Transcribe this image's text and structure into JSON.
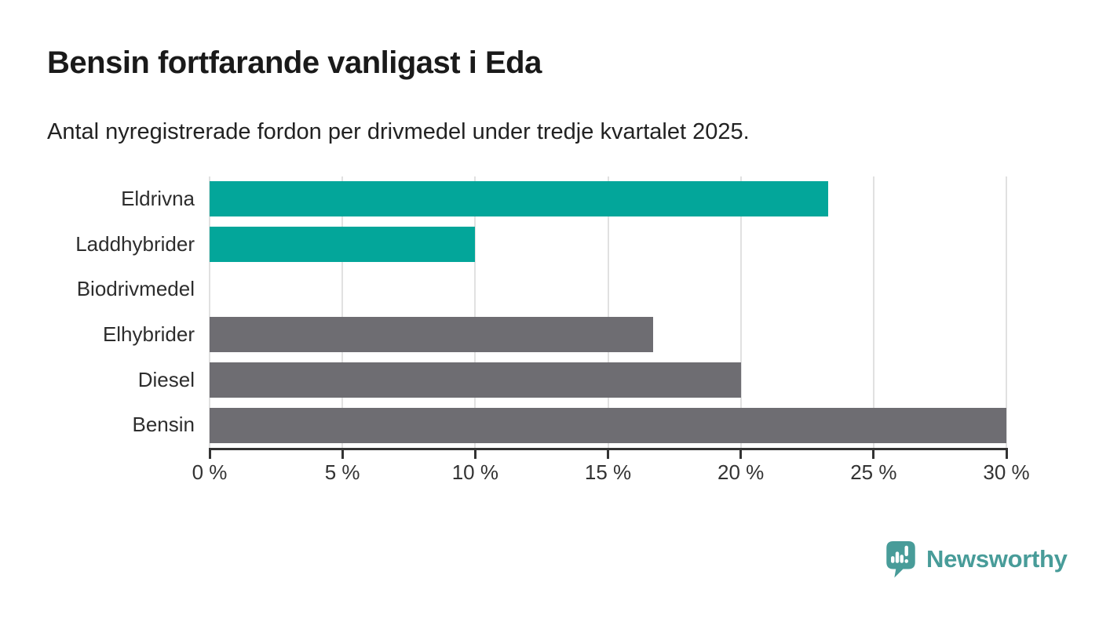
{
  "page": {
    "title": "Bensin fortfarande vanligast i Eda",
    "subtitle": "Antal nyregistrerade fordon per drivmedel under tredje kvartalet 2025."
  },
  "chart_data": {
    "type": "bar",
    "orientation": "horizontal",
    "title": "Bensin fortfarande vanligast i Eda",
    "subtitle": "Antal nyregistrerade fordon per drivmedel under tredje kvartalet 2025.",
    "categories": [
      "Eldrivna",
      "Laddhybrider",
      "Biodrivmedel",
      "Elhybrider",
      "Diesel",
      "Bensin"
    ],
    "values": [
      23.3,
      10,
      0,
      16.7,
      20,
      30
    ],
    "unit": "%",
    "bar_colors": [
      "#03a69a",
      "#03a69a",
      "#6e6d72",
      "#6e6d72",
      "#6e6d72",
      "#6e6d72"
    ],
    "x_ticks": [
      0,
      5,
      10,
      15,
      20,
      25,
      30
    ],
    "x_tick_labels": [
      "0 %",
      "5 %",
      "10 %",
      "15 %",
      "20 %",
      "25 %",
      "30 %"
    ],
    "xlim": [
      0,
      30
    ],
    "grid": "vertical-gridlines-on",
    "legend": "none"
  },
  "branding": {
    "logo_text": "Newsworthy",
    "logo_color": "#489c99"
  },
  "colors": {
    "accent_teal": "#03a69a",
    "bar_gray": "#6e6d72",
    "axis": "#333333",
    "gridline": "#e1e1e1",
    "title_text": "#1a1a1a"
  }
}
